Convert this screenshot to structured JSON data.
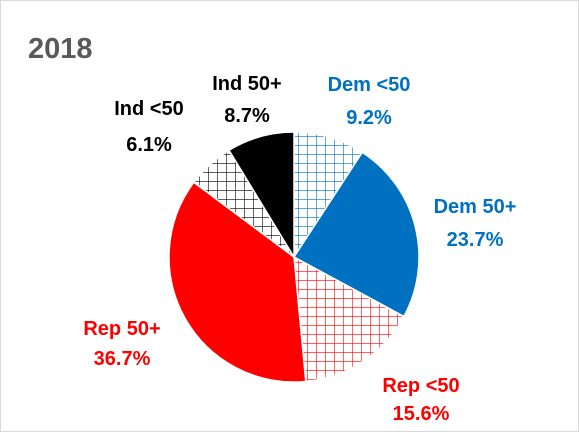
{
  "chart_data": {
    "type": "pie",
    "title": "2018",
    "slices": [
      {
        "label": "Dem <50",
        "value": 9.2,
        "value_label": "9.2%",
        "color": "#0070c0",
        "pattern": "grid"
      },
      {
        "label": "Dem 50+",
        "value": 23.7,
        "value_label": "23.7%",
        "color": "#0070c0",
        "pattern": "solid"
      },
      {
        "label": "Rep <50",
        "value": 15.6,
        "value_label": "15.6%",
        "color": "#ff0000",
        "pattern": "grid"
      },
      {
        "label": "Rep 50+",
        "value": 36.7,
        "value_label": "36.7%",
        "color": "#ff0000",
        "pattern": "solid"
      },
      {
        "label": "Ind <50",
        "value": 6.1,
        "value_label": "6.1%",
        "color": "#000000",
        "pattern": "grid"
      },
      {
        "label": "Ind 50+",
        "value": 8.7,
        "value_label": "8.7%",
        "color": "#000000",
        "pattern": "solid"
      }
    ],
    "start_angle": "12 o'clock",
    "direction": "clockwise"
  },
  "colors": {
    "title": "#595959",
    "border": "#d9d9d9"
  }
}
